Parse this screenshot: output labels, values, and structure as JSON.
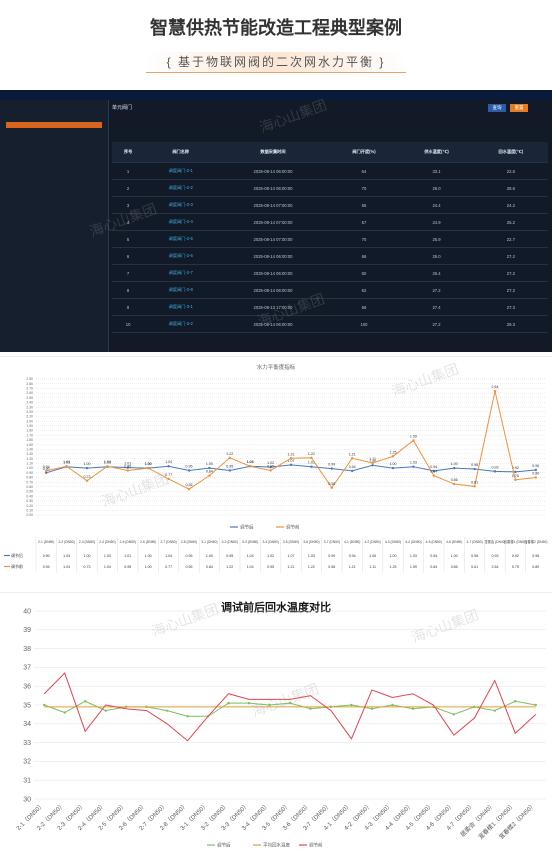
{
  "header": {
    "title": "智慧供热节能改造工程典型案例",
    "subtitle": "{ 基于物联网阀的二次网水力平衡 }"
  },
  "watermark": "海心山集团",
  "dashboard": {
    "section": "单元阀门",
    "buttons": [
      "查询",
      "重置"
    ],
    "columns": [
      "序号",
      "阀门名称",
      "数据采集时间",
      "阀门开度(%)",
      "供水温度(℃)",
      "回水温度(℃)"
    ],
    "rows": [
      [
        "1",
        "调度阀门-2-1",
        "2025-08-14 06:00:00",
        "64",
        "33.1",
        "22.6"
      ],
      [
        "2",
        "调度阀门-2-2",
        "2025-08-14 06:00:00",
        "70",
        "26.0",
        "28.6"
      ],
      [
        "3",
        "调度阀门-2-3",
        "2025-08-14 07:00:00",
        "55",
        "24.4",
        "24.2"
      ],
      [
        "4",
        "调度阀门-2-4",
        "2025-08-14 07:00:00",
        "57",
        "24.9",
        "25.2"
      ],
      [
        "5",
        "调度阀门-2-5",
        "2025-08-14 07:00:00",
        "70",
        "25.9",
        "22.7"
      ],
      [
        "6",
        "调度阀门-2-6",
        "2025-08-14 06:00:00",
        "66",
        "26.0",
        "27.2"
      ],
      [
        "7",
        "调度阀门-2-7",
        "2025-08-14 06:00:00",
        "60",
        "26.4",
        "27.2"
      ],
      [
        "8",
        "调度阀门-2-8",
        "2025-08-14 06:00:00",
        "62",
        "27.2",
        "27.2"
      ],
      [
        "9",
        "调度阀门-3-1",
        "2025-08-13 17:00:00",
        "56",
        "27.4",
        "27.3"
      ],
      [
        "10",
        "调度阀门-3-2",
        "2025-08-14 06:00:00",
        "100",
        "27.2",
        "29.3"
      ]
    ]
  },
  "chart_data": [
    {
      "type": "line",
      "title": "水力平衡度指标",
      "categories": [
        "2-1 (DN50)",
        "2-2 (DN50)",
        "2-3 (DN50)",
        "2-4 (DN50)",
        "2-5 (DN50)",
        "2-6 (DN50)",
        "2-7 (DN50)",
        "2-8 (DN50)",
        "3-1 (DN50)",
        "3-2 (DN50)",
        "3-3 (DN50)",
        "3-4 (DN50)",
        "3-5 (DN50)",
        "3-6 (DN50)",
        "3-7 (DN50)",
        "4-1 (DN50)",
        "4-2 (DN50)",
        "4-3 (DN50)",
        "4-4 (DN50)",
        "4-5 (DN50)",
        "4-6 (DN50)",
        "4-7 (DN50)",
        "居委会 (DN40)",
        "宜春楼1 (DN50)",
        "宜春楼2 (DN50)"
      ],
      "series": [
        {
          "name": "调节后",
          "color": "#4a78b8",
          "values": [
            0.9,
            1.03,
            1,
            1.03,
            1.01,
            1,
            1.04,
            0.95,
            1,
            0.95,
            1.04,
            1.02,
            1.07,
            1.03,
            0.99,
            0.94,
            1.06,
            1,
            1.03,
            0.94,
            1,
            0.98,
            0.93,
            0.92,
            0.96
          ],
          "value_labels": [
            "0.90",
            "1.03",
            "1.00",
            "1.03",
            "1.01",
            "1.00",
            "1.04",
            "0.95",
            "1.00",
            "0.95",
            "1.04",
            "1.02",
            "1.07",
            "1.03",
            "0.99",
            "0.94",
            "1.06",
            "1.00",
            "1.03",
            "0.94",
            "1.00",
            "0.98",
            "0.93",
            "0.92",
            "0.96"
          ]
        },
        {
          "name": "调节前",
          "color": "#e9923a",
          "values": [
            0.94,
            1.04,
            0.73,
            1.04,
            0.95,
            1,
            0.77,
            0.55,
            0.84,
            1.22,
            1.04,
            0.95,
            1.21,
            1.22,
            0.58,
            1.21,
            1.11,
            1.25,
            1.59,
            0.84,
            0.66,
            0.61,
            2.64,
            0.75,
            0.8
          ],
          "value_labels": [
            "0.94",
            "1.04",
            "0.73",
            "1.04",
            "0.95",
            "1.00",
            "0.77",
            "0.55",
            "0.84",
            "1.22",
            "1.04",
            "0.95",
            "1.21",
            "1.22",
            "0.58",
            "1.21",
            "1.11",
            "1.25",
            "1.59",
            "0.84",
            "0.66",
            "0.61",
            "2.64",
            "0.75",
            "0.80"
          ]
        }
      ],
      "ylim": [
        0,
        2.9
      ],
      "yticks": [
        {
          "value": 0,
          "label": "0.00"
        },
        {
          "value": 0.1,
          "label": "0.10"
        },
        {
          "value": 0.2,
          "label": "0.20"
        },
        {
          "value": 0.3,
          "label": "0.30"
        },
        {
          "value": 0.4,
          "label": "0.40"
        },
        {
          "value": 0.5,
          "label": "0.50"
        },
        {
          "value": 0.6,
          "label": "0.60"
        },
        {
          "value": 0.7,
          "label": "0.70"
        },
        {
          "value": 0.8,
          "label": "0.80"
        },
        {
          "value": 0.9,
          "label": "0.90"
        },
        {
          "value": 1,
          "label": "1.00"
        },
        {
          "value": 1.1,
          "label": "1.10"
        },
        {
          "value": 1.2,
          "label": "1.20"
        },
        {
          "value": 1.3,
          "label": "1.30"
        },
        {
          "value": 1.4,
          "label": "1.40"
        },
        {
          "value": 1.5,
          "label": "1.50"
        },
        {
          "value": 1.6,
          "label": "1.60"
        },
        {
          "value": 1.7,
          "label": "1.70"
        },
        {
          "value": 1.8,
          "label": "1.80"
        },
        {
          "value": 1.9,
          "label": "1.90"
        },
        {
          "value": 2,
          "label": "2.00"
        },
        {
          "value": 2.1,
          "label": "2.10"
        },
        {
          "value": 2.2,
          "label": "2.20"
        },
        {
          "value": 2.3,
          "label": "2.30"
        },
        {
          "value": 2.4,
          "label": "2.40"
        },
        {
          "value": 2.5,
          "label": "2.50"
        },
        {
          "value": 2.6,
          "label": "2.60"
        },
        {
          "value": 2.7,
          "label": "2.70"
        },
        {
          "value": 2.8,
          "label": "2.80"
        },
        {
          "value": 2.9,
          "label": "2.90"
        }
      ],
      "grid": true,
      "legend": "bottom"
    },
    {
      "type": "line",
      "title": "调试前后回水温度对比",
      "categories": [
        "2-1（DN50）",
        "2-2（DN50）",
        "2-3（DN50）",
        "2-4（DN50）",
        "2-5（DN50）",
        "2-6（DN50）",
        "2-7（DN50）",
        "2-8（DN50）",
        "3-1（DN50）",
        "3-2（DN50）",
        "3-3（DN50）",
        "3-4（DN50）",
        "3-5（DN50）",
        "3-6（DN50）",
        "3-7（DN50）",
        "4-1（DN50）",
        "4-2（DN50）",
        "4-3（DN50）",
        "4-4（DN50）",
        "4-5（DN50）",
        "4-6（DN50）",
        "4-7（DN50）",
        "居委会（DN40）",
        "宜春楼1（DN50）",
        "宜春楼2（DN50）"
      ],
      "series": [
        {
          "name": "调节后",
          "color": "#7fbf5a",
          "markers": true,
          "values": [
            35,
            34.6,
            35.2,
            34.7,
            34.9,
            34.9,
            34.7,
            34.4,
            34.4,
            35.1,
            35.1,
            35,
            35.1,
            34.8,
            34.9,
            35,
            34.8,
            35,
            34.8,
            34.9,
            34.5,
            34.9,
            34.7,
            35.2,
            35
          ]
        },
        {
          "name": "平均回水温度",
          "color": "#d9a13b",
          "markers": false,
          "values": [
            34.9,
            34.9,
            34.9,
            34.9,
            34.9,
            34.9,
            34.9,
            34.9,
            34.9,
            34.9,
            34.9,
            34.9,
            34.9,
            34.9,
            34.9,
            34.9,
            34.9,
            34.9,
            34.9,
            34.9,
            34.9,
            34.9,
            34.9,
            34.9,
            34.9
          ]
        },
        {
          "name": "调节前",
          "color": "#e0454d",
          "markers": false,
          "values": [
            35.6,
            36.7,
            33.6,
            35,
            34.8,
            34.7,
            34,
            33.1,
            34.4,
            35.6,
            35.3,
            35.3,
            35.3,
            35.5,
            34.7,
            33.2,
            35.8,
            35.4,
            35.6,
            35,
            33.4,
            34.3,
            36.3,
            33.5,
            34.5
          ]
        }
      ],
      "ylim": [
        30,
        40
      ],
      "yticks": [
        30,
        31,
        32,
        33,
        34,
        35,
        36,
        37,
        38,
        39,
        40
      ],
      "grid": true,
      "legend": "bottom"
    }
  ]
}
